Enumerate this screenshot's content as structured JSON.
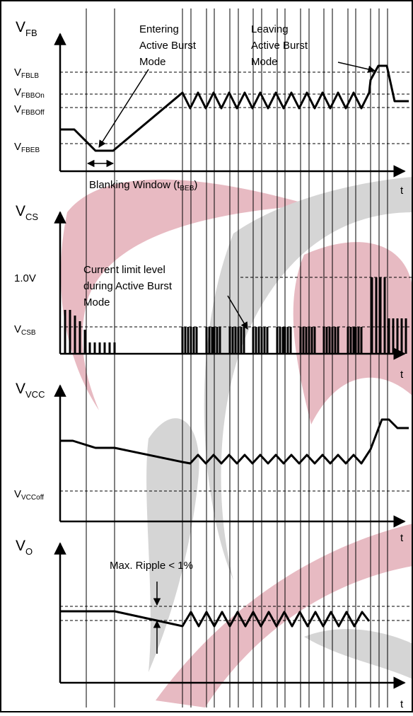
{
  "colors": {
    "line": "#000000",
    "watermark_red": "#e0a3ae",
    "watermark_gray": "#c8c8c8"
  },
  "panels": {
    "fb": {
      "axis_main": "V",
      "axis_sub": "FB",
      "t": "t",
      "levels": [
        {
          "main": "V",
          "sub": "FBLB"
        },
        {
          "main": "V",
          "sub": "FBBOn"
        },
        {
          "main": "V",
          "sub": "FBBOff"
        },
        {
          "main": "V",
          "sub": "FBEB"
        }
      ],
      "annot_enter": [
        "Entering",
        "Active Burst",
        "Mode"
      ],
      "annot_leave": [
        "Leaving",
        "Active Burst",
        "Mode"
      ],
      "blank_pre": "Blanking Window (t",
      "blank_sub": "BEB",
      "blank_post": ")"
    },
    "cs": {
      "axis_main": "V",
      "axis_sub": "CS",
      "t": "t",
      "level_1v": "1.0V",
      "level_csb_main": "V",
      "level_csb_sub": "CSB",
      "annot": [
        "Current limit level",
        "during Active Burst",
        "Mode"
      ]
    },
    "vcc": {
      "axis_main": "V",
      "axis_sub": "VCC",
      "t": "t",
      "level_main": "V",
      "level_sub": "VCCoff"
    },
    "vo": {
      "axis_main": "V",
      "axis_sub": "O",
      "t": "t",
      "annot": "Max. Ripple < 1%"
    }
  }
}
